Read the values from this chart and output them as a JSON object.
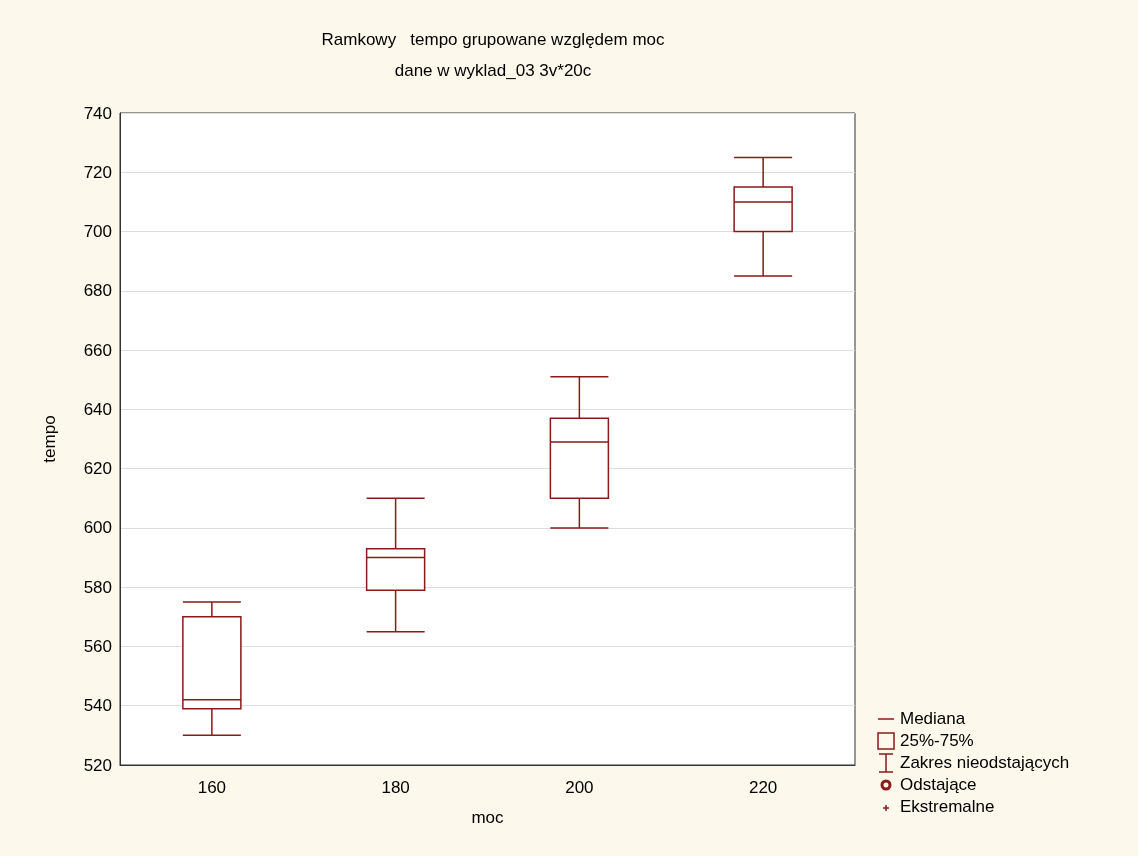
{
  "chart_data": {
    "type": "box",
    "title": "Ramkowy   tempo grupowane względem moc",
    "subtitle": "dane w wyklad_03 3v*20c",
    "xlabel": "moc",
    "ylabel": "tempo",
    "categories": [
      "160",
      "180",
      "200",
      "220"
    ],
    "series": [
      {
        "color": "#8b1a1a",
        "boxes": [
          {
            "low": 530,
            "q1": 539,
            "median": 542,
            "q3": 570,
            "high": 575
          },
          {
            "low": 565,
            "q1": 579,
            "median": 590,
            "q3": 593,
            "high": 610
          },
          {
            "low": 600,
            "q1": 610,
            "median": 629,
            "q3": 637,
            "high": 651
          },
          {
            "low": 685,
            "q1": 700,
            "median": 710,
            "q3": 715,
            "high": 725
          }
        ]
      }
    ],
    "ylim": [
      520,
      740
    ],
    "yticks": [
      520,
      540,
      560,
      580,
      600,
      620,
      640,
      660,
      680,
      700,
      720,
      740
    ],
    "grid": "y",
    "annotations": [
      "Mediana",
      "25%-75%",
      "Zakres nieodstających",
      "Odstające",
      "Ekstremalne"
    ]
  }
}
